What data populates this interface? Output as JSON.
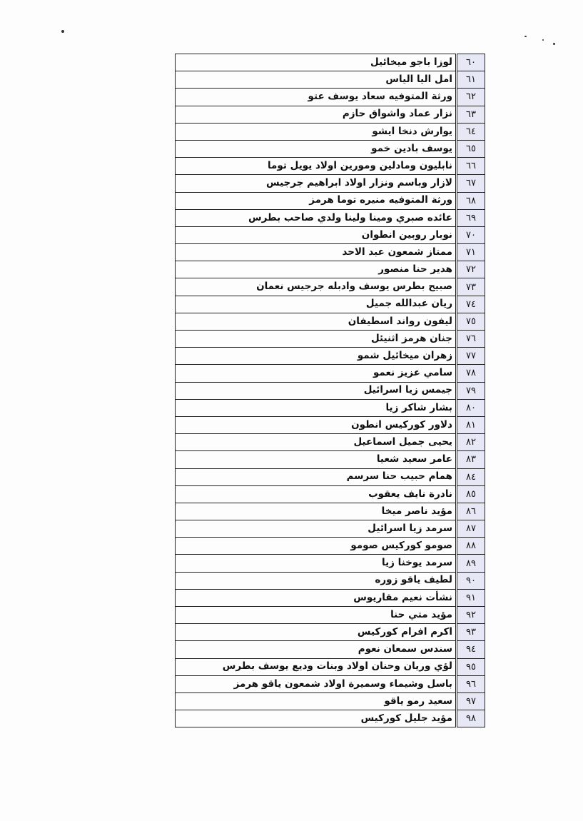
{
  "document": {
    "rows": [
      {
        "num": "٦٠",
        "name": "لوزا باجو ميخائيل"
      },
      {
        "num": "٦١",
        "name": "امل اليا الياس"
      },
      {
        "num": "٦٢",
        "name": "ورثة المتوفيه سعاد يوسف عتو"
      },
      {
        "num": "٦٣",
        "name": "نزار عماد واشواق حازم"
      },
      {
        "num": "٦٤",
        "name": "يوارش دنخا ايشو"
      },
      {
        "num": "٦٥",
        "name": "يوسف بادين خمو"
      },
      {
        "num": "٦٦",
        "name": "نابليون ومادلين ومورين اولاد يويل توما"
      },
      {
        "num": "٦٧",
        "name": "لازار وباسم ونزار اولاد ابراهيم جرجيس"
      },
      {
        "num": "٦٨",
        "name": "ورثة المتوفيه منيره توما هرمز"
      },
      {
        "num": "٦٩",
        "name": "عائده صبري ومينا ولينا ولدي صاحب بطرس"
      },
      {
        "num": "٧٠",
        "name": "نوبار روبين انطوان"
      },
      {
        "num": "٧١",
        "name": "ممتاز شمعون عبد الاحد"
      },
      {
        "num": "٧٢",
        "name": "هدير حنا منصور"
      },
      {
        "num": "٧٣",
        "name": "صبيح بطرس يوسف وادبله جرجيس نعمان"
      },
      {
        "num": "٧٤",
        "name": "ريان عبدالله جميل"
      },
      {
        "num": "٧٥",
        "name": "ليفون رواند اسطيفان"
      },
      {
        "num": "٧٦",
        "name": "جنان هرمز اثنيئل"
      },
      {
        "num": "٧٧",
        "name": "زهران ميخائيل شمو"
      },
      {
        "num": "٧٨",
        "name": "سامي عزيز نعمو"
      },
      {
        "num": "٧٩",
        "name": "جيمس زيا اسرائيل"
      },
      {
        "num": "٨٠",
        "name": "بشار شاكر زيا"
      },
      {
        "num": "٨١",
        "name": "دلاور كوركيس انطون"
      },
      {
        "num": "٨٢",
        "name": "يحيى جميل اسماعيل"
      },
      {
        "num": "٨٣",
        "name": "عامر سعيد شعيا"
      },
      {
        "num": "٨٤",
        "name": "همام حبيب حنا سرسم"
      },
      {
        "num": "٨٥",
        "name": "نادرة نايف يعقوب"
      },
      {
        "num": "٨٦",
        "name": "مؤيد ناصر ميخا"
      },
      {
        "num": "٨٧",
        "name": "سرمد زيا اسرائيل"
      },
      {
        "num": "٨٨",
        "name": "صومو كوركيس صومو"
      },
      {
        "num": "٨٩",
        "name": "سرمد يوخنا زيا"
      },
      {
        "num": "٩٠",
        "name": "لطيف ياقو زوره"
      },
      {
        "num": "٩١",
        "name": "نشأت نعيم مقاريوس"
      },
      {
        "num": "٩٢",
        "name": "مؤيد متي حنا"
      },
      {
        "num": "٩٣",
        "name": "اكرم افرام كوركيس"
      },
      {
        "num": "٩٤",
        "name": "سندس سمعان نعوم"
      },
      {
        "num": "٩٥",
        "name": "لؤي وريان وحنان اولاد وبنات وديع يوسف بطرس"
      },
      {
        "num": "٩٦",
        "name": "باسل وشيماء وسميرة اولاد شمعون ياقو هرمز"
      },
      {
        "num": "٩٧",
        "name": "سعيد رمو ياقو"
      },
      {
        "num": "٩٨",
        "name": "مؤيد جليل كوركيس"
      }
    ]
  },
  "colors": {
    "number_column_fill": "#e6e8f5",
    "ink": "#111111",
    "paper": "#fdfdfd"
  }
}
